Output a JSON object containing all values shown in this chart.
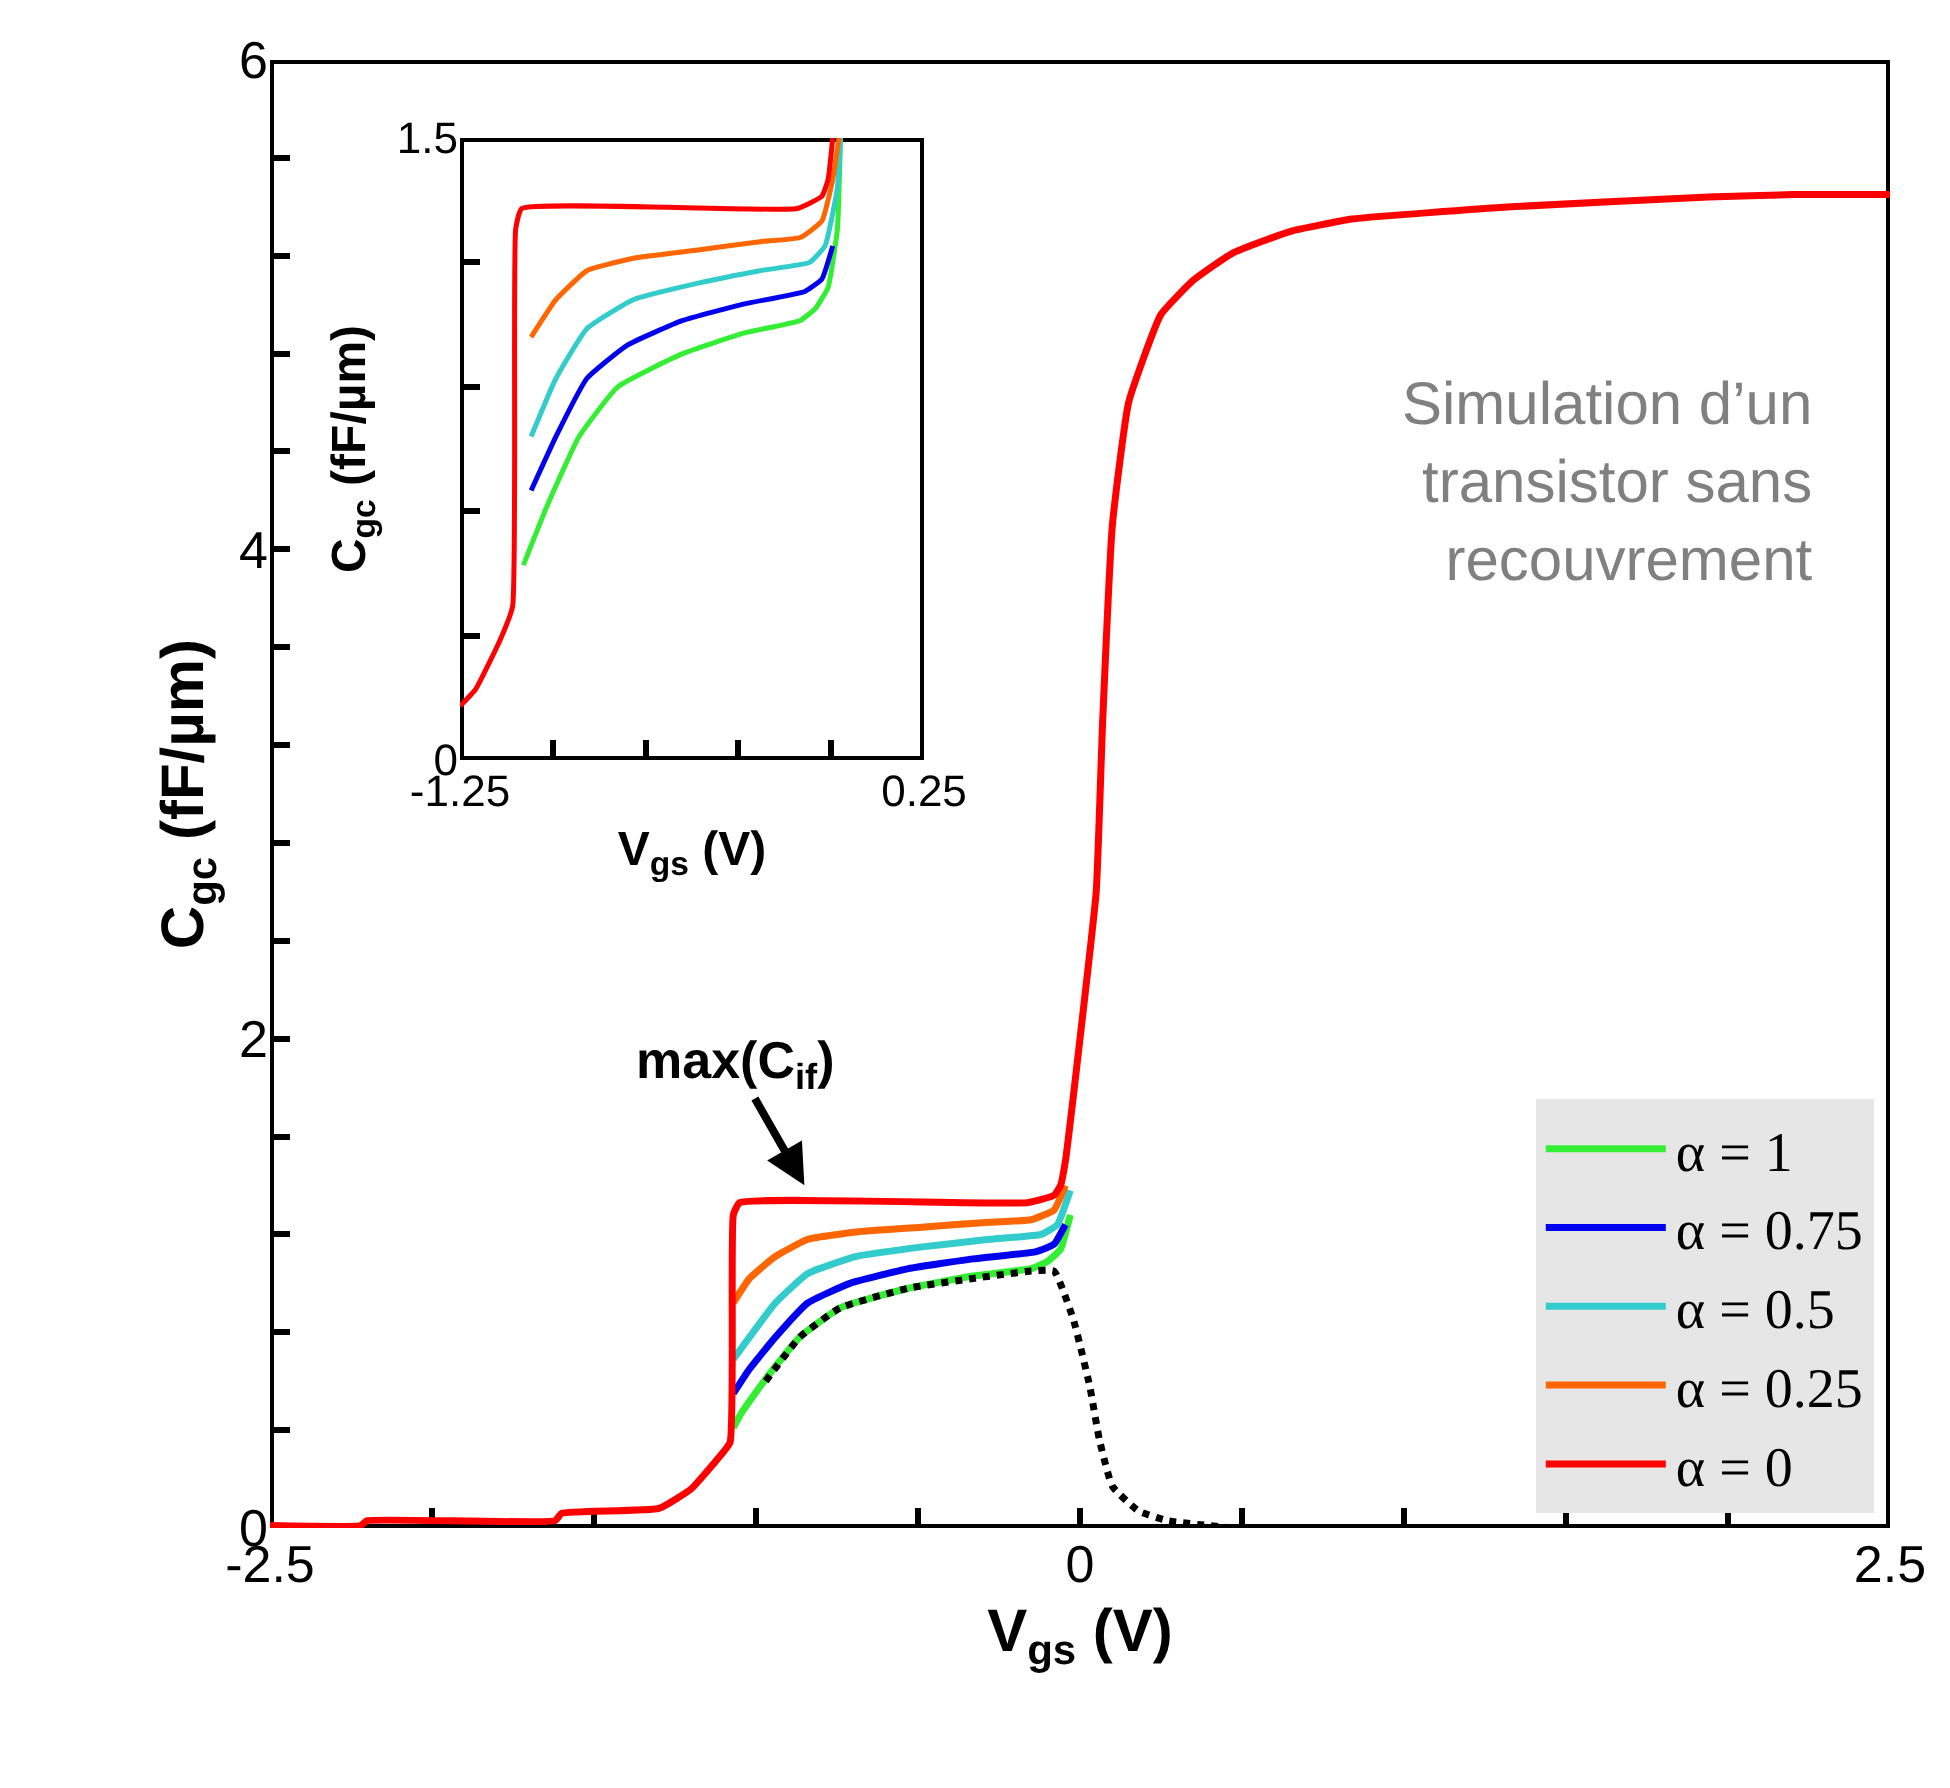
{
  "chart_data": [
    {
      "type": "line",
      "xlabel": "V$_{gs}$ (V)",
      "ylabel": "C$_{gc}$ (fF/µm)",
      "xlim": [
        -2.5,
        2.5
      ],
      "xticks": [
        -2.5,
        {
          "value": -2,
          "label": null
        },
        {
          "value": -1.5,
          "label": null
        },
        {
          "value": -1,
          "label": null
        },
        {
          "value": -0.5,
          "label": null
        },
        0,
        {
          "value": 0.5,
          "label": null
        },
        {
          "value": 1,
          "label": null
        },
        {
          "value": 1.5,
          "label": null
        },
        {
          "value": 2,
          "label": null
        },
        2.5
      ],
      "ylim": [
        0,
        6
      ],
      "yticks": [
        0,
        {
          "value": 0.4,
          "label": null
        },
        {
          "value": 0.8,
          "label": null
        },
        {
          "value": 1.2,
          "label": null
        },
        {
          "value": 1.6,
          "label": null
        },
        2,
        {
          "value": 2.4,
          "label": null
        },
        {
          "value": 2.8,
          "label": null
        },
        {
          "value": 3.2,
          "label": null
        },
        {
          "value": 3.6,
          "label": null
        },
        4,
        {
          "value": 4.4,
          "label": null
        },
        {
          "value": 4.8,
          "label": null
        },
        {
          "value": 5.2,
          "label": null
        },
        {
          "value": 5.6,
          "label": null
        },
        6
      ],
      "legend": "bottom right",
      "line_style": "solid",
      "annotations": [
        {
          "text": "max(C$_{if}$)",
          "x": -0.82,
          "y": 1.33
        },
        "Simulation d’un transistor sans recouvrement"
      ],
      "series": [
        {
          "name": "α = 1",
          "color": "#33ee33",
          "x": [
            -1.07,
            -1.045,
            -0.97,
            -0.865,
            -0.74,
            -0.53,
            -0.33,
            -0.15,
            -0.1,
            -0.06,
            -0.03
          ],
          "values": [
            0.41,
            0.47,
            0.61,
            0.78,
            0.9,
            0.98,
            1.03,
            1.06,
            1.09,
            1.14,
            1.28
          ]
        },
        {
          "name": "α = 0.75",
          "color": "#0000ee",
          "x": [
            -1.07,
            -1.02,
            -0.94,
            -0.84,
            -0.71,
            -0.53,
            -0.33,
            -0.135,
            -0.08,
            -0.045
          ],
          "values": [
            0.55,
            0.65,
            0.78,
            0.92,
            1,
            1.06,
            1.1,
            1.13,
            1.16,
            1.24
          ]
        },
        {
          "name": "α = 0.5",
          "color": "#33cccc",
          "x": [
            -1.07,
            -1.02,
            -0.94,
            -0.84,
            -0.69,
            -0.48,
            -0.28,
            -0.12,
            -0.07,
            -0.03
          ],
          "values": [
            0.69,
            0.78,
            0.92,
            1.04,
            1.11,
            1.15,
            1.18,
            1.2,
            1.24,
            1.38
          ]
        },
        {
          "name": "α = 0.25",
          "color": "#ff6600",
          "x": [
            -1.07,
            -1.02,
            -0.94,
            -0.84,
            -0.69,
            -0.48,
            -0.28,
            -0.15,
            -0.08,
            -0.045
          ],
          "values": [
            0.92,
            1.02,
            1.11,
            1.18,
            1.21,
            1.23,
            1.25,
            1.26,
            1.3,
            1.4
          ]
        },
        {
          "color": "#000000",
          "line_style": "dotted",
          "x": [
            -0.97,
            -0.865,
            -0.74,
            -0.53,
            -0.33,
            -0.15,
            -0.08,
            -0.02,
            0.03,
            0.06,
            0.1,
            0.18,
            0.27,
            0.47
          ],
          "values": [
            0.6,
            0.78,
            0.9,
            0.98,
            1.02,
            1.05,
            1.05,
            0.85,
            0.58,
            0.36,
            0.17,
            0.07,
            0.03,
            0
          ]
        },
        {
          "name": "α = 0",
          "color": "#ff0000",
          "x": [
            -2.5,
            -2.22,
            -2.2,
            -1.62,
            -1.6,
            -1.3,
            -1.2,
            -1.12,
            -1.08,
            -1.07,
            -1.05,
            -0.16,
            -0.08,
            -0.06,
            -0.045,
            0,
            0.05,
            0.07,
            0.1,
            0.15,
            0.25,
            0.35,
            0.47,
            0.65,
            0.84,
            1.33,
            1.94,
            2.2,
            2.5
          ],
          "values": [
            0.01,
            0.01,
            0.03,
            0.03,
            0.06,
            0.08,
            0.16,
            0.28,
            0.35,
            1.28,
            1.33,
            1.33,
            1.36,
            1.4,
            1.5,
            2,
            2.6,
            3.3,
            4.1,
            4.6,
            4.96,
            5.1,
            5.21,
            5.3,
            5.35,
            5.4,
            5.44,
            5.45,
            5.45
          ]
        }
      ]
    },
    {
      "type": "line",
      "xlabel": "V$_{gs}$ (V)",
      "ylabel": "C$_{gc}$ (fF/µm)",
      "line_style": "solid",
      "xlim": [
        -1.25,
        0.25
      ],
      "xticks": [
        -1.25,
        {
          "value": -0.95,
          "label": null
        },
        {
          "value": -0.65,
          "label": null
        },
        {
          "value": -0.35,
          "label": null
        },
        {
          "value": -0.05,
          "label": null
        },
        0.25
      ],
      "ylim": [
        0,
        1.5
      ],
      "yticks": [
        0,
        {
          "value": 0.3,
          "label": null
        },
        {
          "value": 0.6,
          "label": null
        },
        {
          "value": 0.9,
          "label": null
        },
        {
          "value": 1.2,
          "label": null
        },
        1.5
      ],
      "series": [
        {
          "color": "#33ee33",
          "x": [
            -1.045,
            -0.97,
            -0.865,
            -0.74,
            -0.53,
            -0.33,
            -0.15,
            -0.1,
            -0.06,
            -0.03,
            -0.02
          ],
          "values": [
            0.47,
            0.61,
            0.78,
            0.9,
            0.98,
            1.03,
            1.06,
            1.09,
            1.14,
            1.28,
            1.5
          ]
        },
        {
          "color": "#0000ee",
          "x": [
            -1.02,
            -0.94,
            -0.84,
            -0.71,
            -0.53,
            -0.33,
            -0.135,
            -0.08,
            -0.045
          ],
          "values": [
            0.65,
            0.78,
            0.92,
            1,
            1.06,
            1.1,
            1.13,
            1.16,
            1.24
          ]
        },
        {
          "color": "#33cccc",
          "x": [
            -1.02,
            -0.94,
            -0.84,
            -0.69,
            -0.48,
            -0.28,
            -0.12,
            -0.07,
            -0.03,
            -0.02
          ],
          "values": [
            0.78,
            0.92,
            1.04,
            1.11,
            1.15,
            1.18,
            1.2,
            1.24,
            1.38,
            1.5
          ]
        },
        {
          "color": "#ff6600",
          "x": [
            -1.02,
            -0.94,
            -0.84,
            -0.69,
            -0.48,
            -0.28,
            -0.15,
            -0.08,
            -0.045,
            -0.025
          ],
          "values": [
            1.02,
            1.11,
            1.18,
            1.21,
            1.23,
            1.25,
            1.26,
            1.3,
            1.4,
            1.5
          ]
        },
        {
          "color": "#ff0000",
          "x": [
            -1.25,
            -1.2,
            -1.12,
            -1.08,
            -1.07,
            -1.05,
            -0.16,
            -0.08,
            -0.06,
            -0.045
          ],
          "values": [
            0.13,
            0.17,
            0.29,
            0.37,
            1.28,
            1.33,
            1.33,
            1.36,
            1.4,
            1.5
          ]
        }
      ]
    }
  ]
}
